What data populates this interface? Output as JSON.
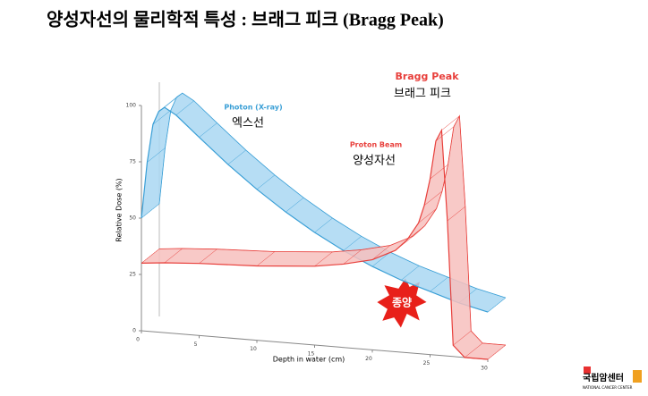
{
  "title": "양성자선의 물리학적 특성 : 브래그 피크 (Bragg Peak)",
  "chart_data": {
    "type": "ribbon",
    "y_label": "Relative Dose (%)",
    "x_label": "Depth in water (cm)",
    "xlim": [
      0,
      30
    ],
    "xticks": [
      0,
      5,
      10,
      15,
      20,
      25,
      30
    ],
    "ylim": [
      0,
      100
    ],
    "yticks": [
      0,
      25,
      50,
      75,
      100
    ],
    "series": [
      {
        "name": "Photon (X-ray)",
        "color": "#3a9fd6",
        "x": [
          0,
          0.5,
          1,
          1.5,
          2,
          3,
          5,
          7.5,
          10,
          12.5,
          15,
          17.5,
          20,
          22.5,
          25,
          27.5,
          30
        ],
        "values": [
          50,
          75,
          92,
          98,
          100,
          97,
          88,
          77,
          67,
          58,
          50,
          43,
          37,
          32,
          28,
          24,
          21
        ]
      },
      {
        "name": "Proton Beam",
        "color": "#e8403c",
        "x": [
          0,
          2,
          5,
          10,
          15,
          17.5,
          20,
          22,
          23,
          24,
          24.5,
          25,
          25.5,
          26,
          26.5,
          27,
          28,
          30
        ],
        "values": [
          30,
          31,
          32,
          33,
          35,
          37,
          40,
          45,
          50,
          58,
          66,
          78,
          95,
          100,
          60,
          5,
          0,
          0
        ]
      }
    ],
    "annotations": [
      "엑스선",
      "양성자선",
      "Bragg Peak",
      "브래그 피크",
      "종양"
    ]
  },
  "logo": {
    "name": "국립암센터",
    "subtitle": "NATIONAL CANCER CENTER"
  }
}
